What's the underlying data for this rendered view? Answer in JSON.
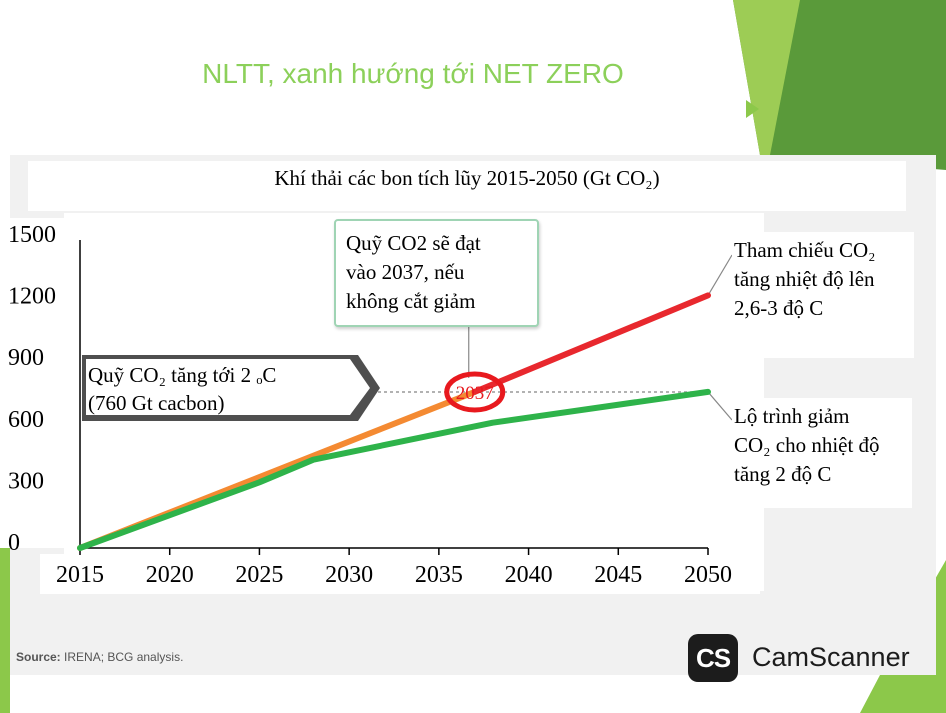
{
  "slide": {
    "title": "NLTT, xanh hướng tới NET ZERO"
  },
  "colors": {
    "title": "#8cd05a",
    "reference_line": "#e8282e",
    "budget_line": "#f48a32",
    "pathway_line": "#2eb34a",
    "marker_circle": "#e8191e",
    "decor_green_dark": "#5a9a3a",
    "decor_green_light": "#9dcc55"
  },
  "chart_data": {
    "type": "line",
    "title": "Khí thải các bon tích lũy 2015-2050 (Gt CO₂)",
    "xlabel": "",
    "ylabel": "",
    "xlim": [
      2015,
      2050
    ],
    "ylim": [
      0,
      1500
    ],
    "x_ticks": [
      "2015",
      "2020",
      "2025",
      "2030",
      "2035",
      "2040",
      "2045",
      "2050"
    ],
    "y_ticks": [
      "1500",
      "1200",
      "900",
      "600",
      "300",
      "0"
    ],
    "series": [
      {
        "points": [
          [
            2015,
            0
          ],
          [
            2037,
            760
          ]
        ]
      },
      {
        "points": [
          [
            2037,
            760
          ],
          [
            2050,
            1230
          ]
        ]
      },
      {
        "points": [
          [
            2015,
            0
          ],
          [
            2025,
            320
          ],
          [
            2028,
            430
          ],
          [
            2038,
            610
          ],
          [
            2050,
            760
          ]
        ]
      }
    ],
    "threshold": {
      "value": 760,
      "label_line1": "Quỹ CO₂ tăng tới 2 ₒC",
      "label_line2": "(760 Gt cacbon)"
    },
    "marker": {
      "x": 2037,
      "y": 760,
      "label": "2037"
    },
    "annotations": {
      "budget": [
        "Quỹ CO2 sẽ đạt",
        "vào 2037, nếu",
        "không cắt giảm"
      ],
      "reference": [
        "Tham chiếu CO₂",
        "tăng nhiệt độ lên",
        "2,6-3 độ C"
      ],
      "pathway": [
        "Lộ trình giảm",
        "CO₂ cho nhiệt độ",
        "tăng 2 độ C"
      ]
    }
  },
  "source": {
    "label": "Source:",
    "text": "IRENA; BCG analysis."
  },
  "watermark": {
    "logo": "CS",
    "name": "CamScanner"
  }
}
